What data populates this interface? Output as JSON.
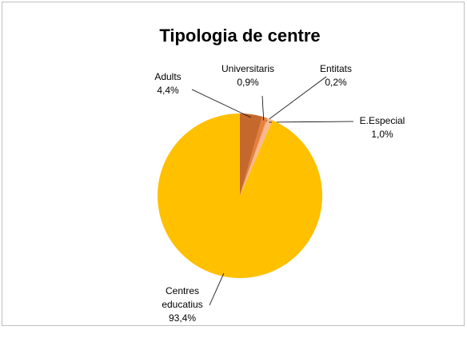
{
  "chart_data": {
    "type": "pie",
    "title": "Tipologia de centre",
    "categories": [
      "Adults",
      "Universitaris",
      "Entitats",
      "E.Especial",
      "Centres educatius"
    ],
    "values": [
      4.4,
      0.9,
      0.2,
      1.0,
      93.4
    ],
    "value_labels": [
      "4,4%",
      "0,9%",
      "0,2%",
      "1,0%",
      "93,4%"
    ],
    "colors": [
      "#c5682d",
      "#e57f3c",
      "#f09a5e",
      "#f7b98f",
      "#ffc000"
    ]
  }
}
